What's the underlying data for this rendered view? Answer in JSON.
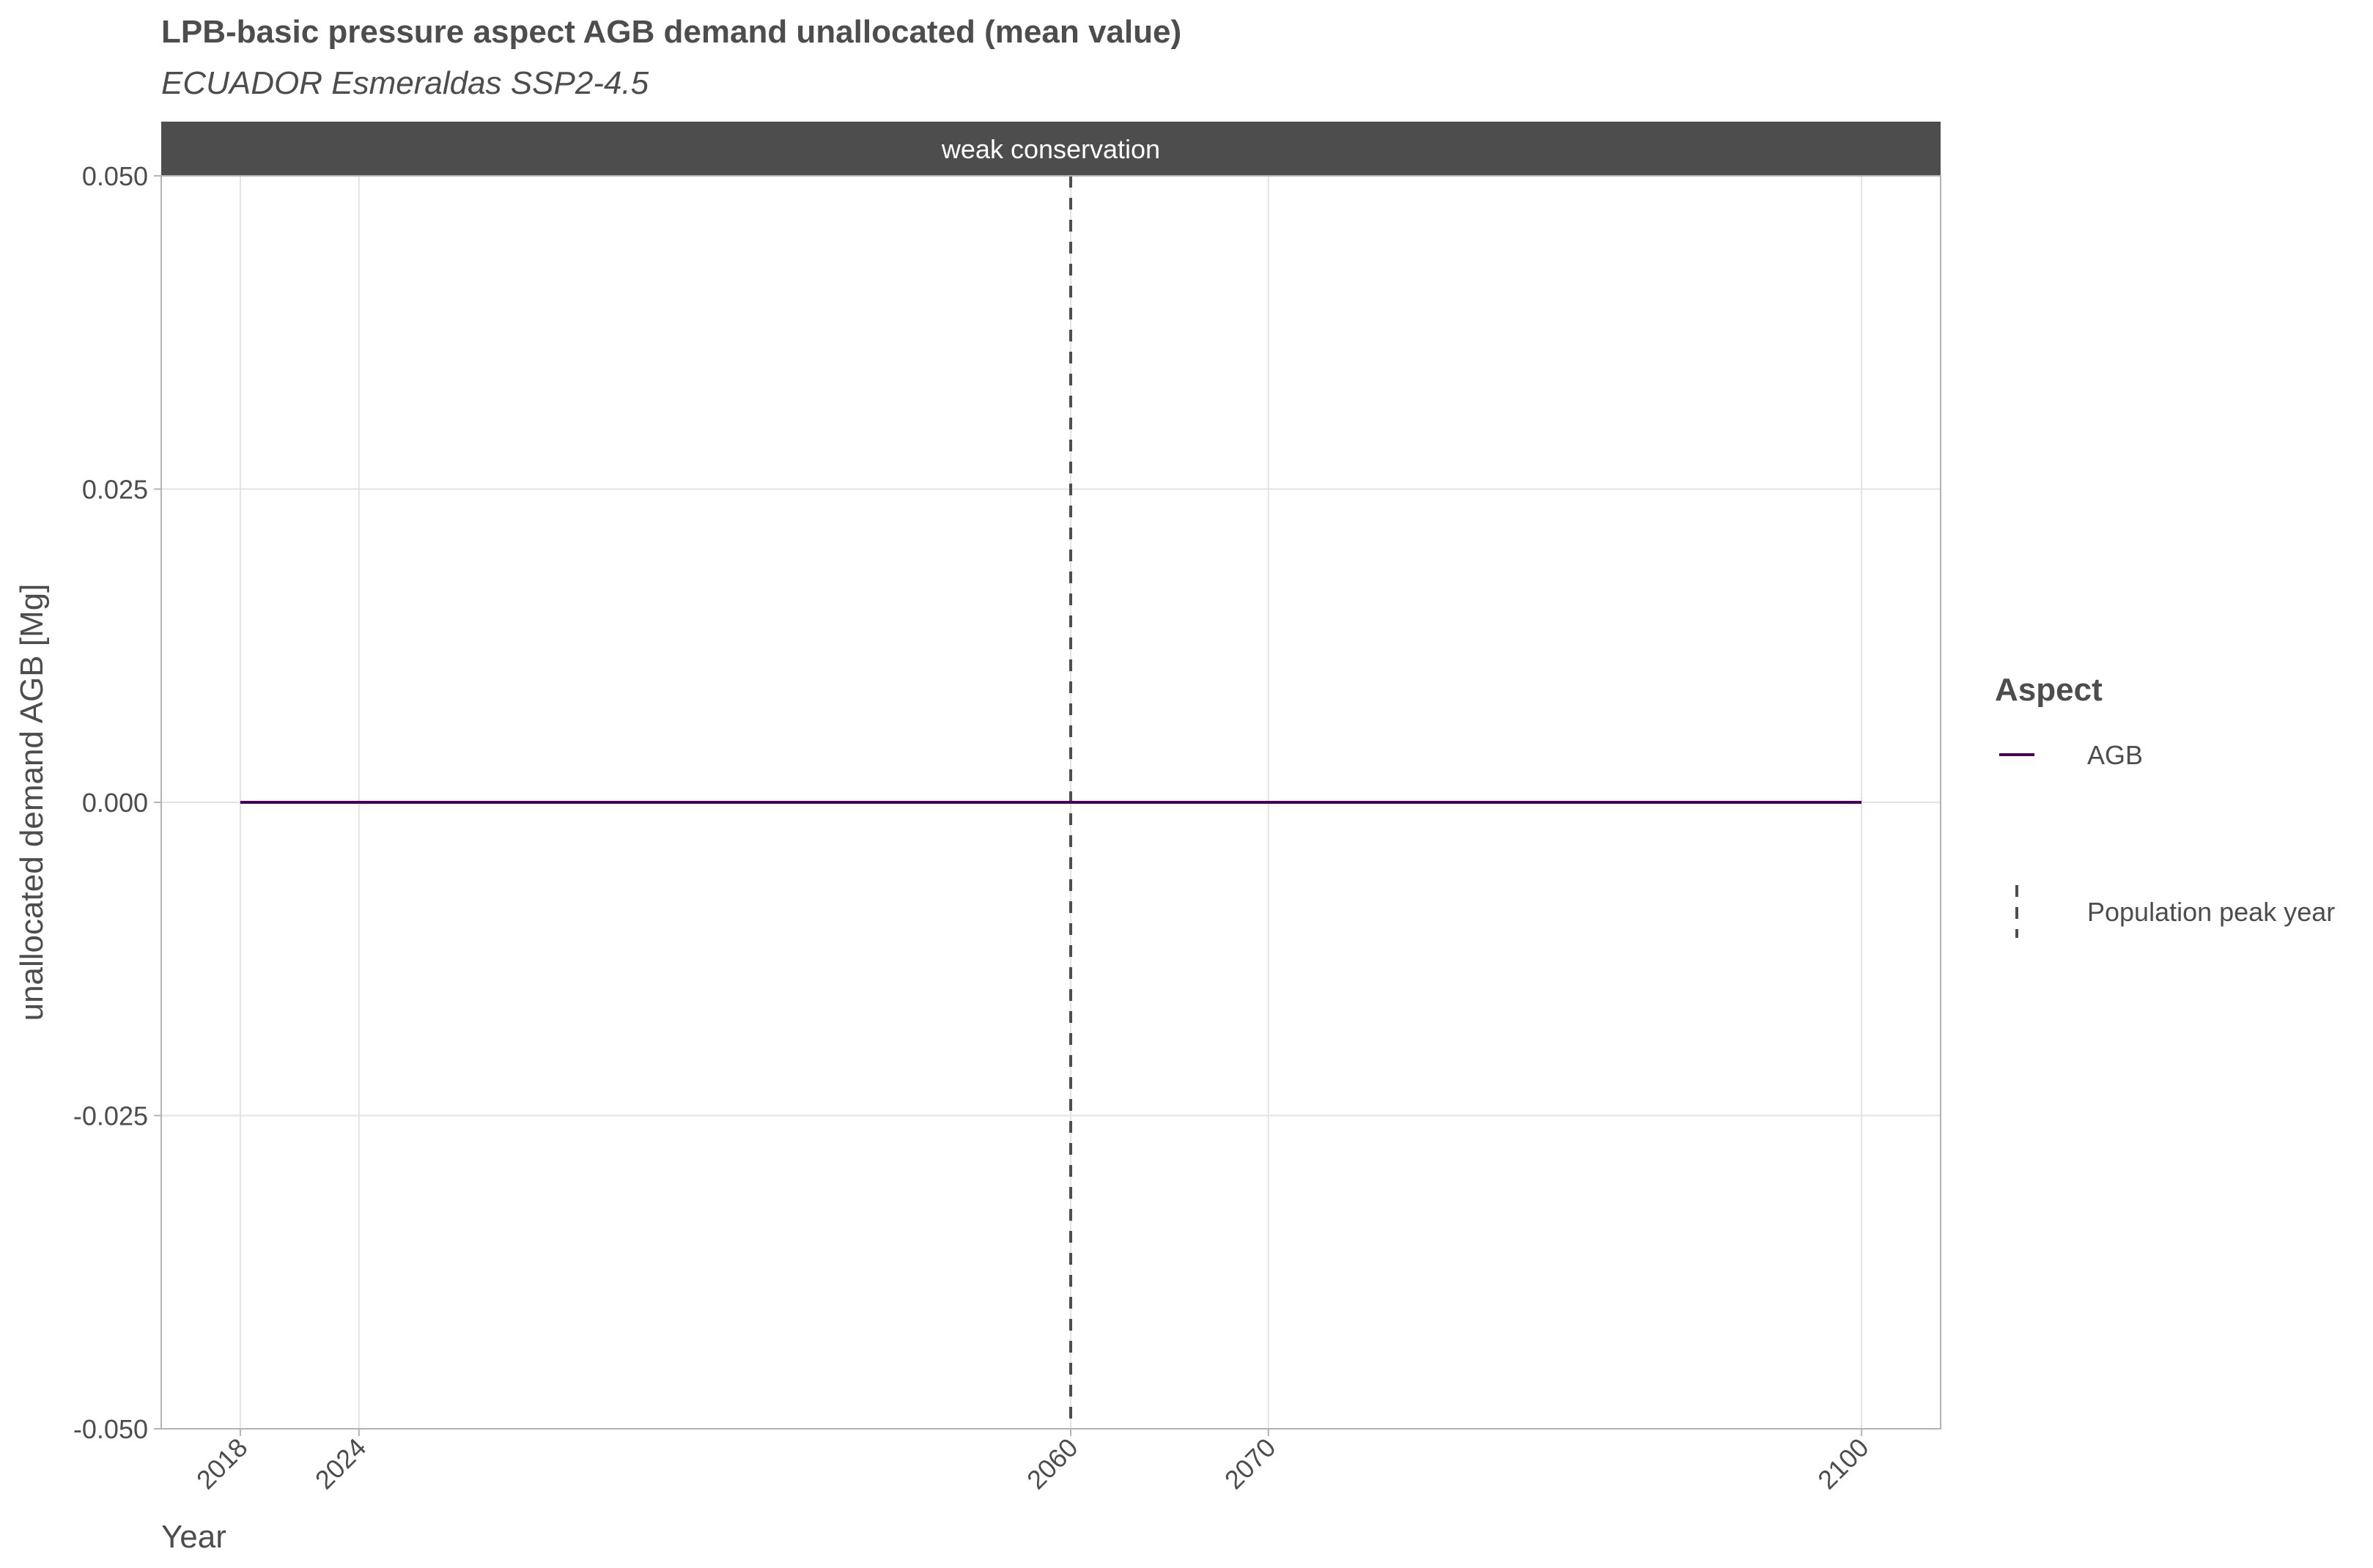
{
  "chart_data": {
    "type": "line",
    "title": "LPB-basic pressure aspect AGB demand unallocated (mean value)",
    "subtitle": "ECUADOR Esmeraldas SSP2-4.5",
    "facet_label": "weak conservation",
    "xlabel": "Year",
    "ylabel": "unallocated demand AGB [Mg]",
    "x_ticks": [
      2018,
      2024,
      2060,
      2070,
      2100
    ],
    "x_tick_labels": [
      "2018",
      "2024",
      "2060",
      "2070",
      "2100"
    ],
    "y_ticks": [
      -0.05,
      -0.025,
      0,
      0.025,
      0.05
    ],
    "y_tick_labels": [
      "-0.050",
      "-0.025",
      "0.000",
      "0.025",
      "0.050"
    ],
    "xlim": [
      2014,
      2104
    ],
    "ylim": [
      -0.05,
      0.05
    ],
    "grid": true,
    "series": [
      {
        "name": "AGB",
        "color": "#440154",
        "x": [
          2018,
          2024,
          2060,
          2070,
          2100
        ],
        "values": [
          0,
          0,
          0,
          0,
          0
        ]
      }
    ],
    "reference_lines": [
      {
        "name": "Population peak year",
        "x": 2060,
        "style": "dashed",
        "color": "#4d4d4d"
      }
    ],
    "legend": {
      "title": "Aspect",
      "position": "right",
      "items": [
        {
          "label": "AGB",
          "kind": "line",
          "color": "#440154"
        },
        {
          "label": "Population peak year",
          "kind": "dashed",
          "color": "#4d4d4d"
        }
      ]
    }
  }
}
